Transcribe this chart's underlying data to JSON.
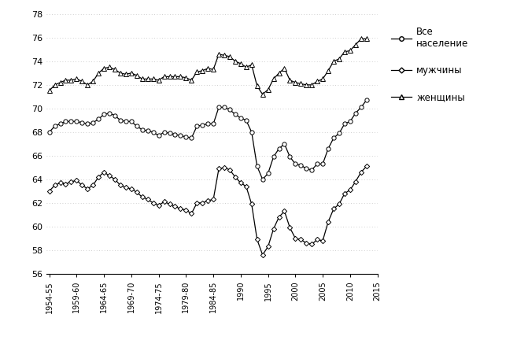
{
  "title": "",
  "xlabel": "",
  "ylabel": "",
  "ylim": [
    56,
    78
  ],
  "xlim": [
    1954.5,
    2015
  ],
  "yticks": [
    56,
    58,
    60,
    62,
    64,
    66,
    68,
    70,
    72,
    74,
    76,
    78
  ],
  "xtick_labels": [
    "1954-55",
    "1959-60",
    "1964-65",
    "1969-70",
    "1974-75",
    "1979-80",
    "1984-85",
    "1990",
    "1995",
    "2000",
    "2005",
    "2010",
    "2015"
  ],
  "xtick_positions": [
    1955,
    1960,
    1965,
    1970,
    1975,
    1980,
    1985,
    1990,
    1995,
    2000,
    2005,
    2010,
    2015
  ],
  "legend_labels": [
    "Все\nнаселение",
    "мужчины",
    "женщины"
  ],
  "line_color": "#000000",
  "grid_color": "#c0c0c0",
  "all_years": [
    1955,
    1956,
    1957,
    1958,
    1959,
    1960,
    1961,
    1962,
    1963,
    1964,
    1965,
    1966,
    1967,
    1968,
    1969,
    1970,
    1971,
    1972,
    1973,
    1974,
    1975,
    1976,
    1977,
    1978,
    1979,
    1980,
    1981,
    1982,
    1983,
    1984,
    1985,
    1986,
    1987,
    1988,
    1989,
    1990,
    1991,
    1992,
    1993,
    1994,
    1995,
    1996,
    1997,
    1998,
    1999,
    2000,
    2001,
    2002,
    2003,
    2004,
    2005,
    2006,
    2007,
    2008,
    2009,
    2010,
    2011,
    2012,
    2013
  ],
  "total": [
    68.0,
    68.5,
    68.7,
    68.9,
    68.9,
    68.9,
    68.8,
    68.7,
    68.8,
    69.1,
    69.5,
    69.6,
    69.4,
    69.0,
    68.9,
    68.9,
    68.5,
    68.2,
    68.1,
    68.0,
    67.7,
    68.0,
    67.9,
    67.8,
    67.7,
    67.6,
    67.5,
    68.5,
    68.6,
    68.7,
    68.7,
    70.1,
    70.1,
    69.9,
    69.5,
    69.2,
    69.0,
    68.0,
    65.1,
    64.0,
    64.5,
    65.9,
    66.6,
    67.0,
    65.9,
    65.3,
    65.2,
    64.9,
    64.8,
    65.3,
    65.3,
    66.6,
    67.5,
    67.9,
    68.7,
    68.9,
    69.6,
    70.1,
    70.7
  ],
  "male": [
    63.0,
    63.5,
    63.7,
    63.6,
    63.8,
    63.9,
    63.5,
    63.2,
    63.5,
    64.2,
    64.6,
    64.3,
    64.0,
    63.5,
    63.3,
    63.2,
    62.9,
    62.5,
    62.3,
    62.0,
    61.8,
    62.1,
    61.9,
    61.7,
    61.5,
    61.4,
    61.1,
    62.0,
    62.0,
    62.2,
    62.3,
    64.9,
    65.0,
    64.8,
    64.2,
    63.7,
    63.4,
    61.9,
    58.9,
    57.6,
    58.3,
    59.8,
    60.8,
    61.3,
    59.9,
    59.0,
    58.9,
    58.6,
    58.5,
    58.9,
    58.8,
    60.4,
    61.5,
    61.9,
    62.8,
    63.1,
    63.8,
    64.6,
    65.1
  ],
  "female": [
    71.5,
    72.0,
    72.2,
    72.4,
    72.4,
    72.5,
    72.3,
    72.0,
    72.3,
    73.0,
    73.4,
    73.5,
    73.3,
    73.0,
    72.9,
    73.0,
    72.8,
    72.5,
    72.5,
    72.5,
    72.4,
    72.7,
    72.7,
    72.7,
    72.7,
    72.6,
    72.4,
    73.1,
    73.2,
    73.4,
    73.3,
    74.6,
    74.5,
    74.4,
    74.0,
    73.8,
    73.5,
    73.7,
    71.9,
    71.2,
    71.6,
    72.5,
    73.0,
    73.4,
    72.4,
    72.2,
    72.1,
    72.0,
    72.0,
    72.3,
    72.5,
    73.2,
    74.0,
    74.2,
    74.8,
    74.9,
    75.4,
    75.9,
    75.9
  ]
}
